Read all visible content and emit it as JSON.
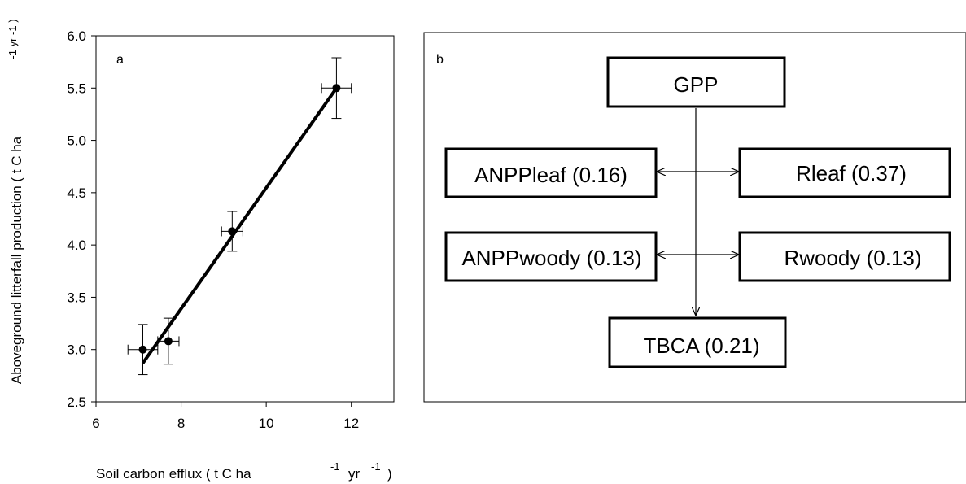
{
  "chart_data": [
    {
      "type": "scatter",
      "panel_label": "a",
      "xlabel": "Soil carbon  efflux ( t C ha",
      "xlabel_sup1": "-1",
      "xlabel_mid": "yr",
      "xlabel_sup2": "-1",
      "xlabel_end": ")",
      "ylabel": "Aboveground litterfall production ( t C ha",
      "ylabel_sup": "-1 yr -1 )",
      "xlim": [
        6,
        13
      ],
      "ylim": [
        2.5,
        6.0
      ],
      "x_ticks": [
        6,
        8,
        10,
        12
      ],
      "y_ticks": [
        2.5,
        3.0,
        3.5,
        4.0,
        4.5,
        5.0,
        5.5,
        6.0
      ],
      "grid": false,
      "points": [
        {
          "x": 7.1,
          "y": 3.0,
          "xerr": 0.35,
          "yerr": 0.24
        },
        {
          "x": 7.7,
          "y": 3.08,
          "xerr": 0.25,
          "yerr": 0.22
        },
        {
          "x": 9.2,
          "y": 4.13,
          "xerr": 0.25,
          "yerr": 0.19
        },
        {
          "x": 11.65,
          "y": 5.5,
          "xerr": 0.35,
          "yerr": 0.29
        }
      ],
      "fit_line": {
        "x": [
          7.1,
          11.65
        ],
        "y": [
          2.87,
          5.5
        ]
      },
      "colors": {
        "marker": "#000000",
        "line": "#000000"
      }
    },
    {
      "type": "diagram",
      "panel_label": "b",
      "nodes": {
        "gpp": "GPP",
        "anpp_leaf": "ANPPleaf (0.16)",
        "r_leaf": "Rleaf (0.37)",
        "anpp_woody": "ANPPwoody (0.13)",
        "r_woody": "Rwoody (0.13)",
        "tbca": "TBCA (0.21)"
      }
    }
  ]
}
